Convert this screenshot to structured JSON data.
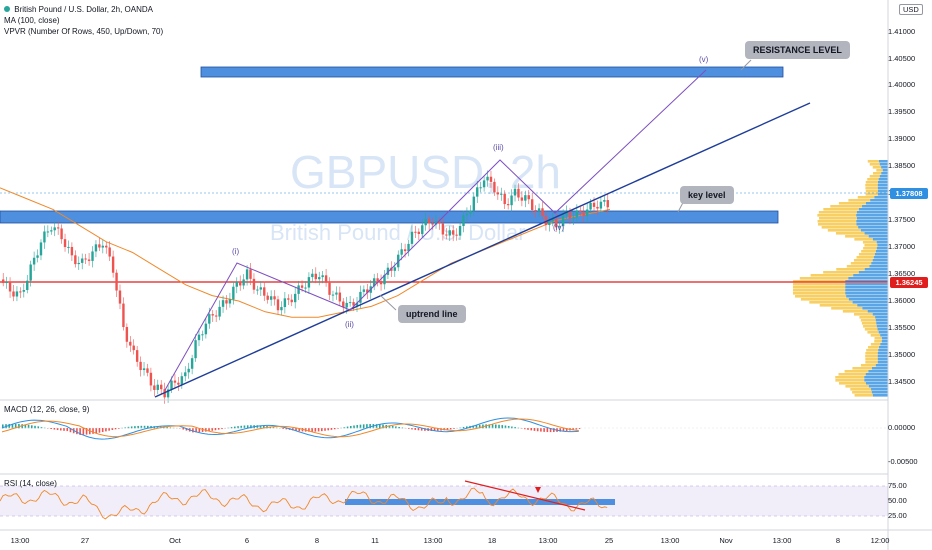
{
  "header": {
    "symbol_line": "British Pound / U.S. Dollar, 2h, OANDA",
    "ma_line": "MA (100, close)",
    "vpvr_line": "VPVR (Number Of Rows, 450, Up/Down, 70)"
  },
  "watermark": {
    "title": "GBPUSD, 2h",
    "subtitle": "British Pound / U.S. Dollar"
  },
  "currency_badge": "USD",
  "price_axis": [
    "1.41000",
    "1.40500",
    "1.40000",
    "1.39500",
    "1.39000",
    "1.38500",
    "1.38000",
    "1.37500",
    "1.37000",
    "1.36500",
    "1.36000",
    "1.35500",
    "1.35000",
    "1.34500"
  ],
  "price_tags": {
    "current": "1.37808",
    "red_line": "1.36245"
  },
  "time_axis": [
    "13:00",
    "27",
    "Oct",
    "6",
    "8",
    "11",
    "13:00",
    "18",
    "13:00",
    "25",
    "13:00",
    "Nov",
    "13:00",
    "8",
    "12:00"
  ],
  "callouts": {
    "resistance": "RESISTANCE LEVEL",
    "key_level": "key level",
    "uptrend": "uptrend line"
  },
  "waves": [
    "(i)",
    "(ii)",
    "(iii)",
    "(iv)",
    "(v)"
  ],
  "macd": {
    "label": "MACD (12, 26, close, 9)",
    "axis": [
      "0.00000",
      "-0.00500"
    ]
  },
  "rsi": {
    "label": "RSI (14, close)",
    "axis": [
      "75.00",
      "50.00",
      "25.00"
    ]
  },
  "colors": {
    "level_blue": "#4f8fe0",
    "red_line": "#e01e1e",
    "trend_navy": "#1e3d99",
    "wave_purple": "#7d4fc0",
    "ma_orange": "#f0892b",
    "up": "#26a69a",
    "down": "#ef5350",
    "vp_up": "#f5bf2d",
    "vp_down": "#2f8fe0"
  },
  "chart_data": {
    "type": "candlestick",
    "price_range": [
      1.342,
      1.414
    ],
    "series_price": [
      1.364,
      1.362,
      1.361,
      1.366,
      1.371,
      1.374,
      1.372,
      1.368,
      1.367,
      1.369,
      1.371,
      1.366,
      1.355,
      1.35,
      1.347,
      1.344,
      1.343,
      1.345,
      1.346,
      1.352,
      1.356,
      1.358,
      1.36,
      1.363,
      1.365,
      1.362,
      1.361,
      1.359,
      1.36,
      1.362,
      1.364,
      1.365,
      1.362,
      1.36,
      1.359,
      1.361,
      1.363,
      1.364,
      1.366,
      1.369,
      1.372,
      1.374,
      1.375,
      1.373,
      1.372,
      1.375,
      1.379,
      1.383,
      1.381,
      1.378,
      1.38,
      1.379,
      1.377,
      1.375,
      1.374,
      1.376,
      1.376,
      1.377,
      1.378
    ],
    "ma_100": [
      1.381,
      1.379,
      1.377,
      1.374,
      1.371,
      1.369,
      1.366,
      1.363,
      1.361,
      1.36,
      1.358,
      1.357,
      1.357,
      1.358,
      1.359,
      1.361,
      1.364,
      1.367,
      1.369,
      1.371,
      1.373,
      1.375,
      1.376,
      1.377
    ],
    "current_price": 1.37808,
    "red_level": 1.36245
  }
}
